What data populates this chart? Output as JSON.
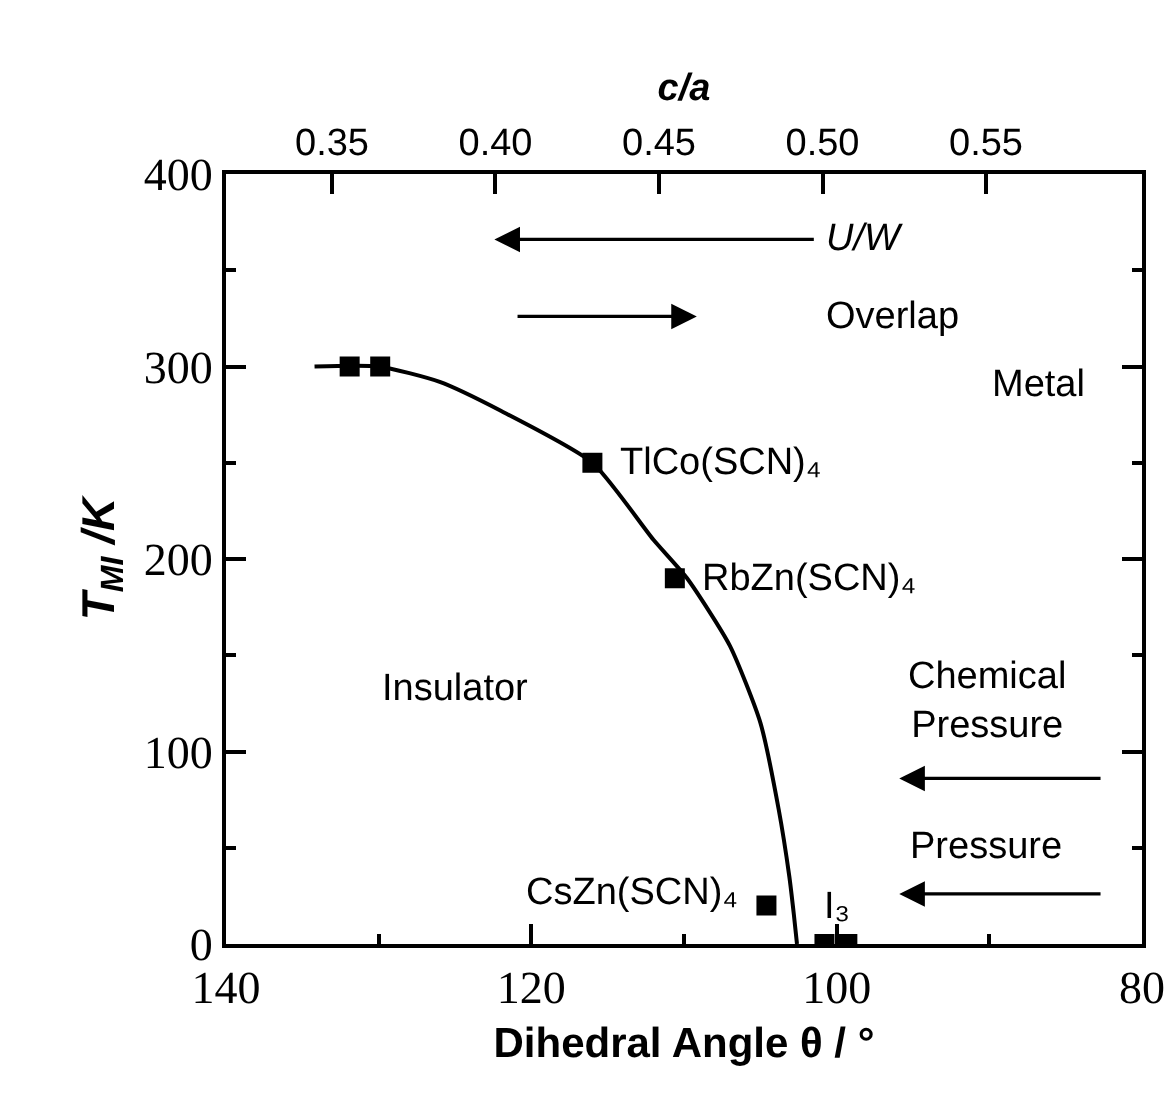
{
  "chart_data": {
    "type": "scatter",
    "xlabel": "Dihedral Angle θ / °",
    "ylabel": "T$_{MI}$ /K",
    "x2label": "c/a",
    "xlim": [
      140,
      80
    ],
    "xticks": [
      140,
      120,
      100,
      80
    ],
    "ylim": [
      0,
      400
    ],
    "yticks": [
      0,
      100,
      200,
      300,
      400
    ],
    "x2lim": [
      0.3176,
      0.5977
    ],
    "x2ticks": [
      {
        "value": 0.35,
        "label": "0.35"
      },
      {
        "value": 0.4,
        "label": "0.40"
      },
      {
        "value": 0.45,
        "label": "0.45"
      },
      {
        "value": 0.5,
        "label": "0.50"
      },
      {
        "value": 0.55,
        "label": "0.55"
      }
    ],
    "series": [
      {
        "color": "#000000",
        "marker": "square",
        "x": [
          131.9,
          129.9,
          116,
          110.6,
          104.6,
          100.8,
          99.3
        ],
        "values": [
          300,
          300,
          250,
          190,
          20,
          0,
          0
        ]
      },
      {
        "type": "line",
        "color": "#000000",
        "marker": "none",
        "line_style": "solid",
        "x": [
          134.2,
          130,
          126,
          122,
          116,
          112,
          109.8,
          107,
          105,
          103.8,
          103.1,
          102.8,
          102.6
        ],
        "values": [
          300,
          300,
          292,
          277,
          250,
          210,
          190,
          155,
          115,
          70,
          35,
          15,
          0
        ]
      }
    ],
    "annotations": [
      {
        "text": "TlCo(SCN)₄",
        "x": 116,
        "y": 250
      },
      {
        "text": "RbZn(SCN)₄",
        "x": 110.6,
        "y": 190
      },
      {
        "text": "CsZn(SCN)₄",
        "x": 104.6,
        "y": 20
      },
      {
        "text": "I₃",
        "x": 100,
        "y": 0
      },
      "U/W",
      "Overlap",
      "Metal",
      "Insulator",
      "Chemical Pressure",
      "Pressure"
    ],
    "grid": false
  }
}
